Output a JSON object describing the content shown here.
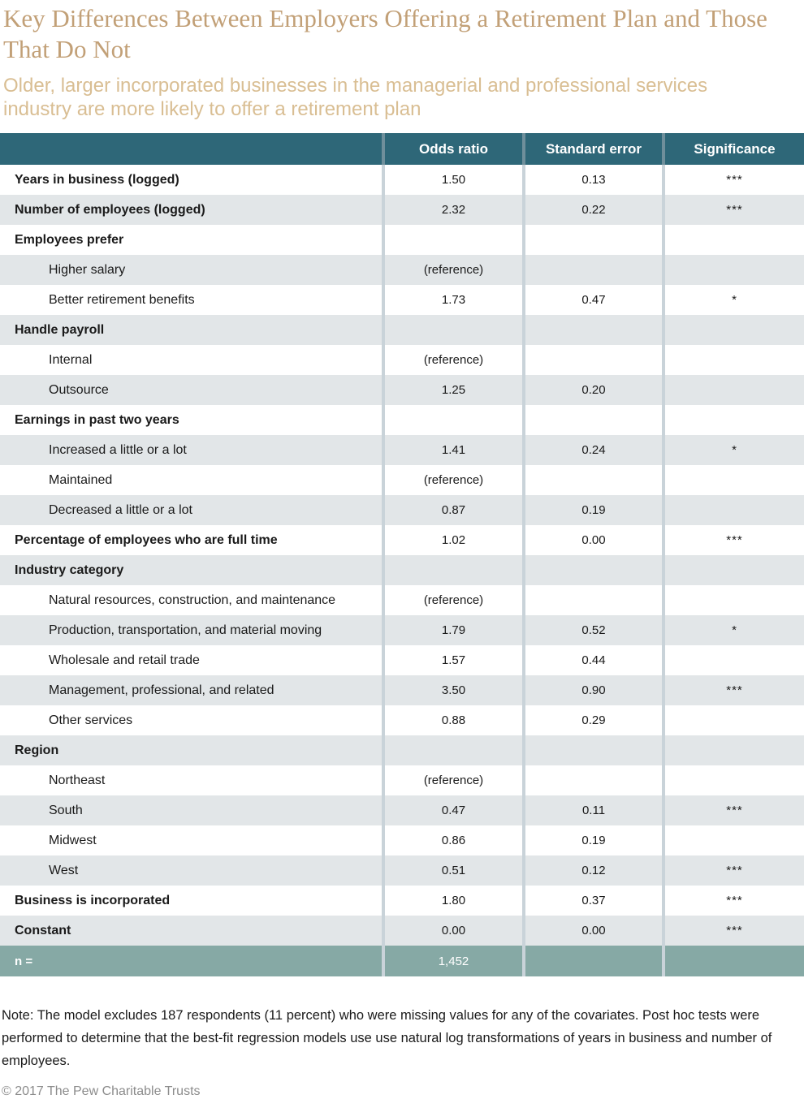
{
  "colors": {
    "header_teal": "#2E6778",
    "header_divider": "#6F8F9B",
    "body_divider": "#C9D3D9",
    "alt_row_gray": "#E2E6E8",
    "footer_sage": "#86A9A5",
    "title_gold": "#C2A077",
    "subtitle_tan": "#D9BE93",
    "copyright_gray": "#8C8C8C"
  },
  "chart_data": {
    "type": "table",
    "title": "Key Differences Between Employers Offering a Retirement Plan and Those That Do Not",
    "subtitle": "Older, larger incorporated businesses in the managerial and professional services industry are more likely to offer a retirement plan",
    "columns": [
      "Odds ratio",
      "Standard error",
      "Significance"
    ],
    "rows": [
      {
        "label": "Years in business (logged)",
        "bold": true,
        "indent": false,
        "odds": "1.50",
        "se": "0.13",
        "sig": "***"
      },
      {
        "label": "Number of employees (logged)",
        "bold": true,
        "indent": false,
        "odds": "2.32",
        "se": "0.22",
        "sig": "***"
      },
      {
        "label": "Employees prefer",
        "bold": true,
        "indent": false,
        "odds": "",
        "se": "",
        "sig": ""
      },
      {
        "label": "Higher salary",
        "bold": false,
        "indent": true,
        "odds": "(reference)",
        "se": "",
        "sig": ""
      },
      {
        "label": "Better retirement benefits",
        "bold": false,
        "indent": true,
        "odds": "1.73",
        "se": "0.47",
        "sig": "*"
      },
      {
        "label": "Handle payroll",
        "bold": true,
        "indent": false,
        "odds": "",
        "se": "",
        "sig": ""
      },
      {
        "label": "Internal",
        "bold": false,
        "indent": true,
        "odds": "(reference)",
        "se": "",
        "sig": ""
      },
      {
        "label": "Outsource",
        "bold": false,
        "indent": true,
        "odds": "1.25",
        "se": "0.20",
        "sig": ""
      },
      {
        "label": "Earnings in past two years",
        "bold": true,
        "indent": false,
        "odds": "",
        "se": "",
        "sig": ""
      },
      {
        "label": "Increased a little or a lot",
        "bold": false,
        "indent": true,
        "odds": "1.41",
        "se": "0.24",
        "sig": "*"
      },
      {
        "label": "Maintained",
        "bold": false,
        "indent": true,
        "odds": "(reference)",
        "se": "",
        "sig": ""
      },
      {
        "label": "Decreased a little or a lot",
        "bold": false,
        "indent": true,
        "odds": "0.87",
        "se": "0.19",
        "sig": ""
      },
      {
        "label": "Percentage of employees who are full time",
        "bold": true,
        "indent": false,
        "odds": "1.02",
        "se": "0.00",
        "sig": "***"
      },
      {
        "label": "Industry category",
        "bold": true,
        "indent": false,
        "odds": "",
        "se": "",
        "sig": ""
      },
      {
        "label": "Natural resources, construction, and maintenance",
        "bold": false,
        "indent": true,
        "odds": "(reference)",
        "se": "",
        "sig": ""
      },
      {
        "label": "Production, transportation, and material moving",
        "bold": false,
        "indent": true,
        "odds": "1.79",
        "se": "0.52",
        "sig": "*"
      },
      {
        "label": "Wholesale and retail trade",
        "bold": false,
        "indent": true,
        "odds": "1.57",
        "se": "0.44",
        "sig": ""
      },
      {
        "label": "Management, professional, and related",
        "bold": false,
        "indent": true,
        "odds": "3.50",
        "se": "0.90",
        "sig": "***"
      },
      {
        "label": "Other services",
        "bold": false,
        "indent": true,
        "odds": "0.88",
        "se": "0.29",
        "sig": ""
      },
      {
        "label": "Region",
        "bold": true,
        "indent": false,
        "odds": "",
        "se": "",
        "sig": ""
      },
      {
        "label": "Northeast",
        "bold": false,
        "indent": true,
        "odds": "(reference)",
        "se": "",
        "sig": ""
      },
      {
        "label": "South",
        "bold": false,
        "indent": true,
        "odds": "0.47",
        "se": "0.11",
        "sig": "***"
      },
      {
        "label": "Midwest",
        "bold": false,
        "indent": true,
        "odds": "0.86",
        "se": "0.19",
        "sig": ""
      },
      {
        "label": "West",
        "bold": false,
        "indent": true,
        "odds": "0.51",
        "se": "0.12",
        "sig": "***"
      },
      {
        "label": "Business is incorporated",
        "bold": true,
        "indent": false,
        "odds": "1.80",
        "se": "0.37",
        "sig": "***"
      },
      {
        "label": "Constant",
        "bold": true,
        "indent": false,
        "odds": "0.00",
        "se": "0.00",
        "sig": "***"
      }
    ],
    "footer_row": {
      "label": "n =",
      "odds": "1,452",
      "se": "",
      "sig": ""
    },
    "note": "Note: The model excludes 187 respondents (11 percent) who were missing values for any of the covariates. Post hoc tests were performed to determine that the best-fit regression models use use natural log transformations of years in business and number of employees.",
    "credit": "© 2017 The Pew Charitable Trusts"
  }
}
